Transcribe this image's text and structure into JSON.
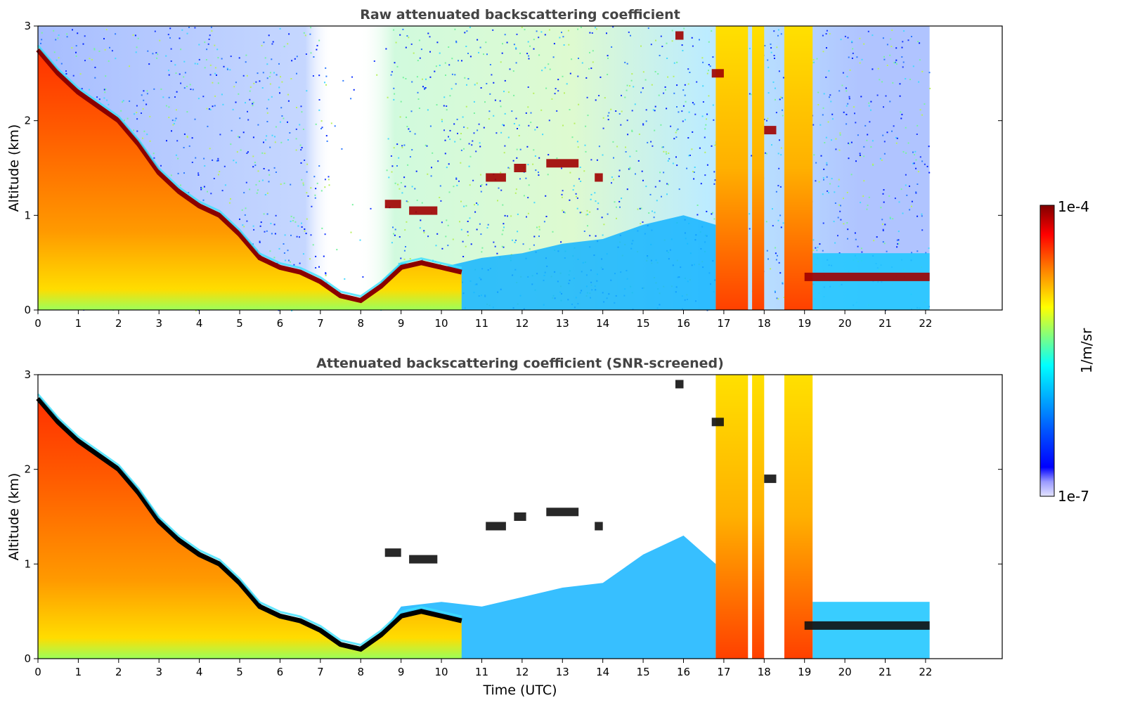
{
  "chart_data": [
    {
      "type": "heatmap",
      "title": "Raw attenuated backscattering coefficient",
      "xlabel": "",
      "ylabel": "Altitude (km)",
      "xlim": [
        0,
        23.9
      ],
      "ylim": [
        0,
        3
      ],
      "x_ticks": [
        0,
        1,
        2,
        3,
        4,
        5,
        6,
        7,
        8,
        9,
        10,
        11,
        12,
        13,
        14,
        15,
        16,
        17,
        18,
        19,
        20,
        21,
        22
      ],
      "y_ticks": [
        0,
        1,
        2,
        3
      ],
      "data_extent_hours": 22.1,
      "screened": false,
      "boundary_layer_top_km": [
        [
          0,
          2.75
        ],
        [
          0.5,
          2.5
        ],
        [
          1,
          2.3
        ],
        [
          1.5,
          2.15
        ],
        [
          2,
          2.0
        ],
        [
          2.5,
          1.75
        ],
        [
          3,
          1.45
        ],
        [
          3.5,
          1.25
        ],
        [
          4,
          1.1
        ],
        [
          4.5,
          1.0
        ],
        [
          5,
          0.8
        ],
        [
          5.5,
          0.55
        ],
        [
          6,
          0.45
        ],
        [
          6.5,
          0.4
        ],
        [
          7,
          0.3
        ],
        [
          7.5,
          0.15
        ],
        [
          8,
          0.1
        ],
        [
          8.5,
          0.25
        ],
        [
          9,
          0.45
        ],
        [
          9.5,
          0.5
        ],
        [
          10,
          0.45
        ],
        [
          10.5,
          0.4
        ]
      ],
      "cloud_segments": [
        {
          "x": [
            8.6,
            9.0
          ],
          "z": 1.12
        },
        {
          "x": [
            9.2,
            9.9
          ],
          "z": 1.05
        },
        {
          "x": [
            11.1,
            11.6
          ],
          "z": 1.4
        },
        {
          "x": [
            11.8,
            12.1
          ],
          "z": 1.5
        },
        {
          "x": [
            12.6,
            13.4
          ],
          "z": 1.55
        },
        {
          "x": [
            13.8,
            14.0
          ],
          "z": 1.4
        },
        {
          "x": [
            15.8,
            16.0
          ],
          "z": 2.9
        },
        {
          "x": [
            16.7,
            17.0
          ],
          "z": 2.5
        },
        {
          "x": [
            18.0,
            18.3
          ],
          "z": 1.9
        },
        {
          "x": [
            19.0,
            22.1
          ],
          "z": 0.35
        }
      ],
      "deep_cloud_columns_hours": [
        [
          16.8,
          17.6
        ],
        [
          17.7,
          18.0
        ],
        [
          18.5,
          19.2
        ]
      ]
    },
    {
      "type": "heatmap",
      "title": "Attenuated backscattering coefficient (SNR-screened)",
      "xlabel": "Time (UTC)",
      "ylabel": "Altitude (km)",
      "xlim": [
        0,
        23.9
      ],
      "ylim": [
        0,
        3
      ],
      "x_ticks": [
        0,
        1,
        2,
        3,
        4,
        5,
        6,
        7,
        8,
        9,
        10,
        11,
        12,
        13,
        14,
        15,
        16,
        17,
        18,
        19,
        20,
        21,
        22
      ],
      "y_ticks": [
        0,
        1,
        2,
        3
      ],
      "screened": true
    }
  ],
  "colorbar": {
    "label": "1/m/sr",
    "max_label": "1e-4",
    "min_label": "1e-7",
    "colormap": [
      "#e8e8ff",
      "#0000ff",
      "#00a8ff",
      "#00ffff",
      "#80ff80",
      "#ffff00",
      "#ff8000",
      "#ff0000",
      "#800000"
    ]
  }
}
